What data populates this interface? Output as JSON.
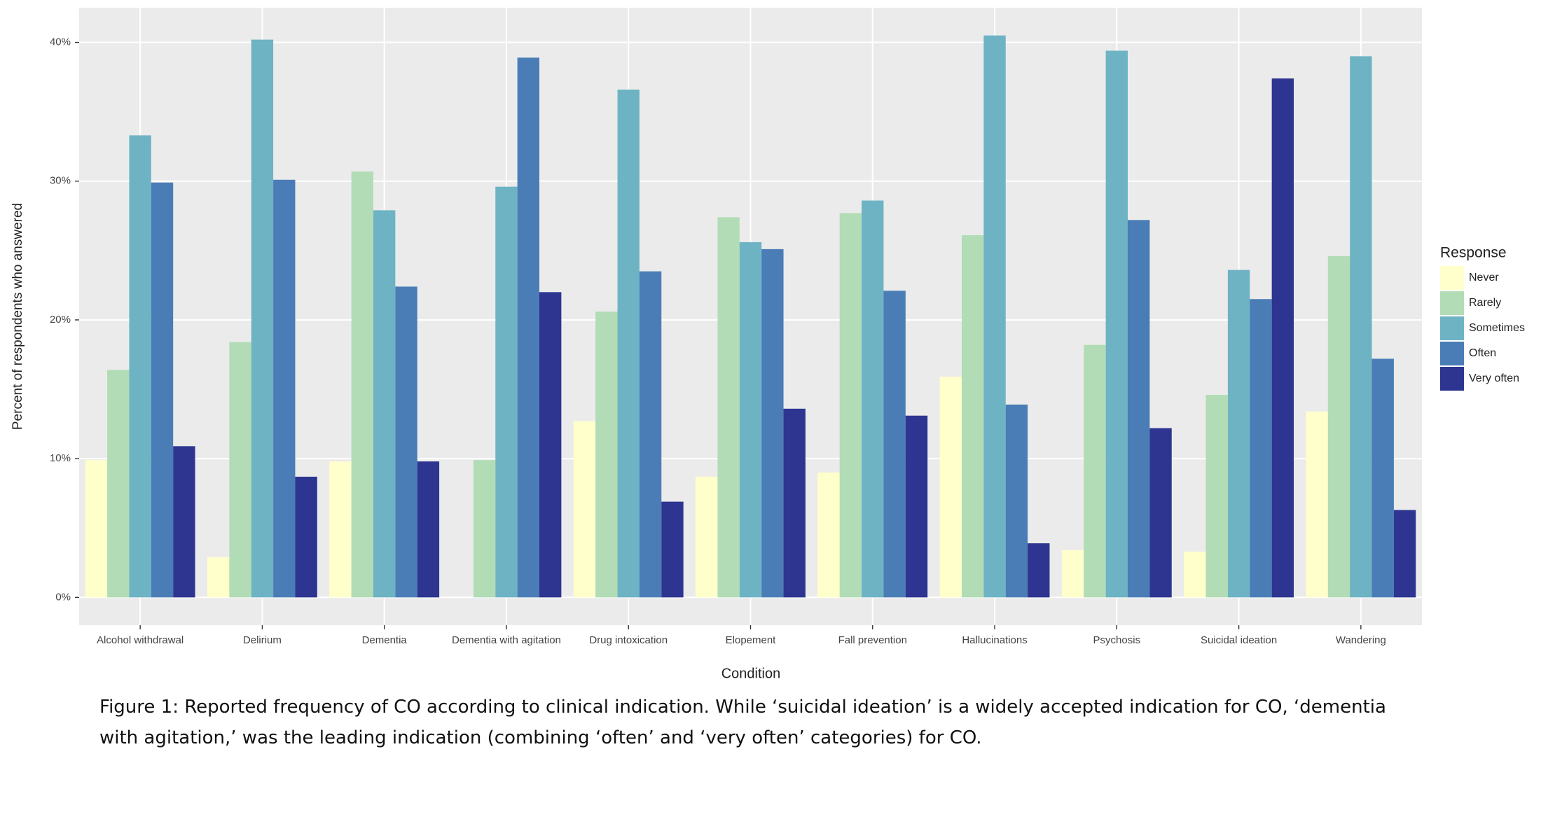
{
  "chart_data": {
    "type": "bar",
    "caption": "Figure 1: Reported frequency of CO according to clinical indication. While ‘suicidal ideation’ is a widely accepted indication for CO, ‘dementia with agitation,’ was the leading indication (combining ‘often’ and ‘very often’ categories) for CO.",
    "x_label": "Condition",
    "y_label": "Percent of respondents who answered",
    "legend_title": "Response",
    "categories": [
      "Alcohol withdrawal",
      "Delirium",
      "Dementia",
      "Dementia with agitation",
      "Drug intoxication",
      "Elopement",
      "Fall prevention",
      "Hallucinations",
      "Psychosis",
      "Suicidal ideation",
      "Wandering"
    ],
    "series": [
      {
        "name": "Never",
        "color": "#ffffcc",
        "values": [
          9.9,
          2.9,
          9.8,
          0,
          12.7,
          8.7,
          9.0,
          15.9,
          3.4,
          3.3,
          13.4
        ]
      },
      {
        "name": "Rarely",
        "color": "#b2dcb5",
        "values": [
          16.4,
          18.4,
          30.7,
          9.9,
          20.6,
          27.4,
          27.7,
          26.1,
          18.2,
          14.6,
          24.6
        ]
      },
      {
        "name": "Sometimes",
        "color": "#6db3c4",
        "values": [
          33.3,
          40.2,
          27.9,
          29.6,
          36.6,
          25.6,
          28.6,
          40.5,
          39.4,
          23.6,
          39.0
        ]
      },
      {
        "name": "Often",
        "color": "#4a7db6",
        "values": [
          29.9,
          30.1,
          22.4,
          38.9,
          23.5,
          25.1,
          22.1,
          13.9,
          27.2,
          21.5,
          17.2
        ]
      },
      {
        "name": "Very often",
        "color": "#2d3590",
        "values": [
          10.9,
          8.7,
          9.8,
          22.0,
          6.9,
          13.6,
          13.1,
          3.9,
          12.2,
          37.4,
          6.3
        ]
      }
    ],
    "ylim": [
      -2,
      42.5
    ],
    "yticks": [
      {
        "value": 0,
        "label": "0%"
      },
      {
        "value": 10,
        "label": "10%"
      },
      {
        "value": 20,
        "label": "20%"
      },
      {
        "value": 30,
        "label": "30%"
      },
      {
        "value": 40,
        "label": "40%"
      }
    ],
    "grid": true,
    "legend": "right"
  }
}
